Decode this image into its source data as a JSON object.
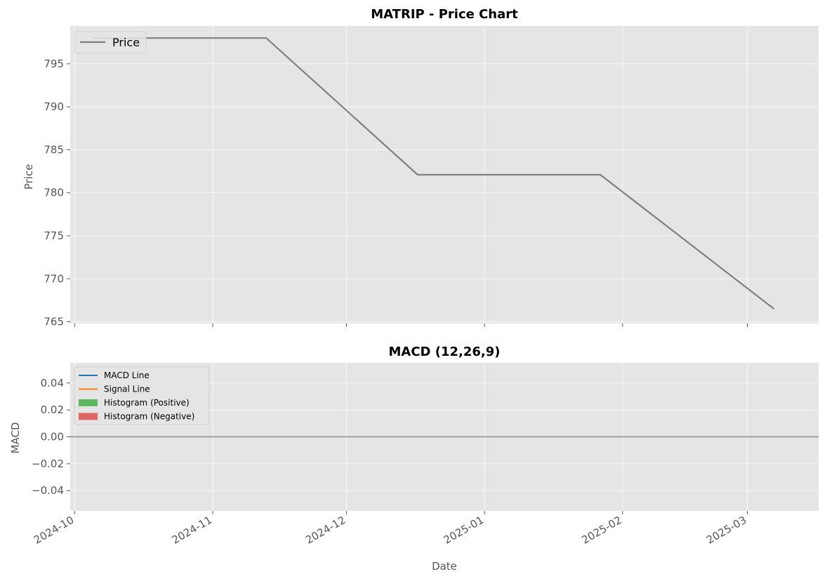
{
  "chart_data": [
    {
      "type": "line",
      "title": "MATRIP - Price Chart",
      "ylabel": "Price",
      "xlabel": "",
      "ylim": [
        764.8,
        799.4
      ],
      "yticks": [
        765,
        770,
        775,
        780,
        785,
        790,
        795
      ],
      "xlim": [
        "2024-09-30",
        "2025-03-17"
      ],
      "grid": true,
      "legend_position": "upper-left",
      "series": [
        {
          "name": "Price",
          "color": "#808080",
          "points": [
            {
              "x": "2024-10-05",
              "y": 798
            },
            {
              "x": "2024-11-13",
              "y": 798
            },
            {
              "x": "2024-12-17",
              "y": 782.1
            },
            {
              "x": "2025-01-27",
              "y": 782.1
            },
            {
              "x": "2025-03-07",
              "y": 766.5
            }
          ]
        }
      ]
    },
    {
      "type": "line",
      "title": "MACD (12,26,9)",
      "ylabel": "MACD",
      "xlabel": "Date",
      "ylim": [
        -0.055,
        0.055
      ],
      "yticks": [
        -0.04,
        -0.02,
        0.0,
        0.02,
        0.04
      ],
      "ytick_labels": [
        "−0.04",
        "−0.02",
        "0.00",
        "0.02",
        "0.04"
      ],
      "xlim": [
        "2024-09-30",
        "2025-03-17"
      ],
      "xticks": [
        "2024-10-01",
        "2024-11-01",
        "2024-12-01",
        "2025-01-01",
        "2025-02-01",
        "2025-03-01"
      ],
      "xtick_labels": [
        "2024-10",
        "2024-11",
        "2024-12",
        "2025-01",
        "2025-02",
        "2025-03"
      ],
      "grid": true,
      "legend_position": "upper-left",
      "zero_line_color": "#a0a0a0",
      "series": [
        {
          "name": "MACD Line",
          "color": "#1f77b4",
          "kind": "line",
          "values": [
            0,
            0
          ]
        },
        {
          "name": "Signal Line",
          "color": "#ff7f0e",
          "kind": "line",
          "values": [
            0,
            0
          ]
        },
        {
          "name": "Histogram (Positive)",
          "color": "#5cb85c",
          "kind": "bar",
          "values": []
        },
        {
          "name": "Histogram (Negative)",
          "color": "#e06666",
          "kind": "bar",
          "values": []
        }
      ]
    }
  ]
}
